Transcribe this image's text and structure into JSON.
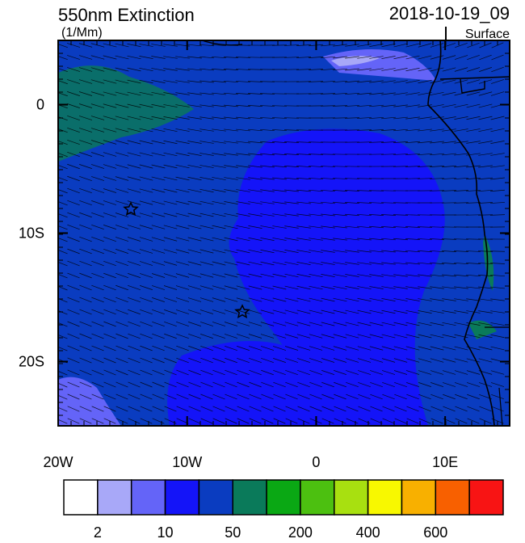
{
  "header": {
    "title": "550nm Extinction",
    "units": "(1/Mm)",
    "time": "2018-10-19_09",
    "level": "Surface"
  },
  "map": {
    "lon_range": [
      -20,
      15
    ],
    "lat_range": [
      -25,
      5
    ],
    "lon_ticks": [
      {
        "value": -20,
        "label": "20W"
      },
      {
        "value": -10,
        "label": "10W"
      },
      0,
      {
        "value": 10,
        "label": "10E"
      }
    ],
    "lat_ticks": [
      0,
      {
        "value": -10,
        "label": "10S"
      },
      {
        "value": -20,
        "label": "20S"
      }
    ]
  },
  "colorbar": {
    "colors": [
      "#ffffff",
      "#a8a8f8",
      "#6464f8",
      "#1414f8",
      "#0a3cc0",
      "#0a7a5a",
      "#0aa814",
      "#4cc010",
      "#a8e010",
      "#f8f800",
      "#f8b000",
      "#f86000",
      "#f81414"
    ],
    "labels": [
      2,
      10,
      50,
      200,
      400,
      600
    ]
  }
}
